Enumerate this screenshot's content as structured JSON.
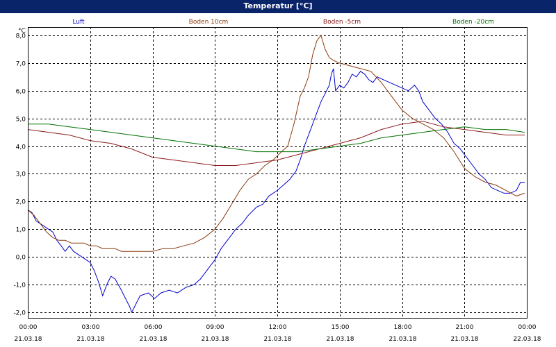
{
  "window": {
    "title": "Temperatur [°C]"
  },
  "chart_data": {
    "type": "line",
    "title": "Temperatur [°C]",
    "ylabel": "°C",
    "xlabel": "",
    "ylim": [
      -2.2,
      8.3
    ],
    "xlim": [
      0,
      24
    ],
    "grid": true,
    "legend": "top",
    "y_ticks": [
      "8,0",
      "7,0",
      "6,0",
      "5,0",
      "4,0",
      "3,0",
      "2,0",
      "1,0",
      "0,0",
      "-1,0",
      "-2,0"
    ],
    "x_ticks": [
      {
        "time": "00:00",
        "date": "21.03.18"
      },
      {
        "time": "03:00",
        "date": "21.03.18"
      },
      {
        "time": "06:00",
        "date": "21.03.18"
      },
      {
        "time": "09:00",
        "date": "21.03.18"
      },
      {
        "time": "12:00",
        "date": "21.03.18"
      },
      {
        "time": "15:00",
        "date": "21.03.18"
      },
      {
        "time": "18:00",
        "date": "21.03.18"
      },
      {
        "time": "21:00",
        "date": "21.03.18"
      },
      {
        "time": "00:00",
        "date": "22.03.18"
      }
    ],
    "series": [
      {
        "name": "Luft",
        "color": "#0000cc",
        "points": [
          [
            0,
            1.7
          ],
          [
            0.2,
            1.6
          ],
          [
            0.4,
            1.3
          ],
          [
            0.6,
            1.2
          ],
          [
            0.8,
            1.1
          ],
          [
            1,
            1.0
          ],
          [
            1.2,
            0.9
          ],
          [
            1.4,
            0.6
          ],
          [
            1.6,
            0.4
          ],
          [
            1.8,
            0.2
          ],
          [
            2,
            0.4
          ],
          [
            2.2,
            0.2
          ],
          [
            2.4,
            0.1
          ],
          [
            2.6,
            0.0
          ],
          [
            2.8,
            -0.1
          ],
          [
            3,
            -0.2
          ],
          [
            3.2,
            -0.5
          ],
          [
            3.4,
            -0.9
          ],
          [
            3.6,
            -1.4
          ],
          [
            3.8,
            -1.0
          ],
          [
            4,
            -0.7
          ],
          [
            4.2,
            -0.8
          ],
          [
            4.5,
            -1.2
          ],
          [
            4.7,
            -1.5
          ],
          [
            4.9,
            -1.8
          ],
          [
            5,
            -2.0
          ],
          [
            5.2,
            -1.7
          ],
          [
            5.4,
            -1.4
          ],
          [
            5.8,
            -1.3
          ],
          [
            6.1,
            -1.5
          ],
          [
            6.4,
            -1.3
          ],
          [
            6.8,
            -1.2
          ],
          [
            7.2,
            -1.3
          ],
          [
            7.6,
            -1.1
          ],
          [
            8,
            -1.0
          ],
          [
            8.3,
            -0.8
          ],
          [
            8.6,
            -0.5
          ],
          [
            9,
            -0.1
          ],
          [
            9.3,
            0.3
          ],
          [
            9.6,
            0.6
          ],
          [
            10,
            1.0
          ],
          [
            10.3,
            1.2
          ],
          [
            10.6,
            1.5
          ],
          [
            11,
            1.8
          ],
          [
            11.3,
            1.9
          ],
          [
            11.6,
            2.2
          ],
          [
            12,
            2.4
          ],
          [
            12.3,
            2.6
          ],
          [
            12.6,
            2.8
          ],
          [
            12.9,
            3.1
          ],
          [
            13.1,
            3.5
          ],
          [
            13.3,
            4.0
          ],
          [
            13.5,
            4.4
          ],
          [
            13.7,
            4.8
          ],
          [
            13.9,
            5.2
          ],
          [
            14.1,
            5.6
          ],
          [
            14.3,
            5.9
          ],
          [
            14.5,
            6.2
          ],
          [
            14.6,
            6.6
          ],
          [
            14.7,
            6.8
          ],
          [
            14.8,
            6.0
          ],
          [
            15,
            6.2
          ],
          [
            15.2,
            6.1
          ],
          [
            15.4,
            6.3
          ],
          [
            15.6,
            6.6
          ],
          [
            15.8,
            6.5
          ],
          [
            16,
            6.7
          ],
          [
            16.2,
            6.6
          ],
          [
            16.4,
            6.4
          ],
          [
            16.6,
            6.3
          ],
          [
            16.8,
            6.5
          ],
          [
            17.1,
            6.4
          ],
          [
            17.4,
            6.3
          ],
          [
            17.7,
            6.2
          ],
          [
            18,
            6.1
          ],
          [
            18.3,
            6.0
          ],
          [
            18.6,
            6.2
          ],
          [
            18.8,
            6.0
          ],
          [
            19,
            5.6
          ],
          [
            19.3,
            5.3
          ],
          [
            19.6,
            5.0
          ],
          [
            19.9,
            4.8
          ],
          [
            20.2,
            4.5
          ],
          [
            20.5,
            4.1
          ],
          [
            20.8,
            3.9
          ],
          [
            21.1,
            3.6
          ],
          [
            21.4,
            3.3
          ],
          [
            21.7,
            3.0
          ],
          [
            22,
            2.8
          ],
          [
            22.3,
            2.5
          ],
          [
            22.6,
            2.4
          ],
          [
            22.9,
            2.3
          ],
          [
            23.2,
            2.3
          ],
          [
            23.5,
            2.4
          ],
          [
            23.7,
            2.7
          ],
          [
            23.9,
            2.7
          ]
        ]
      },
      {
        "name": "Boden 10cm",
        "color": "#8b3a0f",
        "points": [
          [
            0,
            1.7
          ],
          [
            0.3,
            1.5
          ],
          [
            0.6,
            1.2
          ],
          [
            0.9,
            0.9
          ],
          [
            1.2,
            0.7
          ],
          [
            1.5,
            0.6
          ],
          [
            1.8,
            0.6
          ],
          [
            2.1,
            0.5
          ],
          [
            2.4,
            0.5
          ],
          [
            2.7,
            0.5
          ],
          [
            3,
            0.4
          ],
          [
            3.3,
            0.4
          ],
          [
            3.6,
            0.3
          ],
          [
            3.9,
            0.3
          ],
          [
            4.2,
            0.3
          ],
          [
            4.5,
            0.2
          ],
          [
            5,
            0.2
          ],
          [
            5.5,
            0.2
          ],
          [
            6,
            0.2
          ],
          [
            6.5,
            0.3
          ],
          [
            7,
            0.3
          ],
          [
            7.5,
            0.4
          ],
          [
            8,
            0.5
          ],
          [
            8.5,
            0.7
          ],
          [
            9,
            1.0
          ],
          [
            9.4,
            1.4
          ],
          [
            9.8,
            1.9
          ],
          [
            10.2,
            2.4
          ],
          [
            10.6,
            2.8
          ],
          [
            11,
            3.0
          ],
          [
            11.4,
            3.3
          ],
          [
            11.8,
            3.5
          ],
          [
            12.2,
            3.8
          ],
          [
            12.5,
            4.0
          ],
          [
            12.8,
            4.8
          ],
          [
            13.1,
            5.8
          ],
          [
            13.3,
            6.1
          ],
          [
            13.5,
            6.5
          ],
          [
            13.7,
            7.3
          ],
          [
            13.9,
            7.8
          ],
          [
            14.1,
            8.0
          ],
          [
            14.3,
            7.5
          ],
          [
            14.5,
            7.2
          ],
          [
            14.7,
            7.1
          ],
          [
            15,
            7.0
          ],
          [
            15.5,
            6.9
          ],
          [
            16,
            6.8
          ],
          [
            16.5,
            6.7
          ],
          [
            17,
            6.3
          ],
          [
            17.5,
            5.8
          ],
          [
            18,
            5.3
          ],
          [
            18.5,
            5.0
          ],
          [
            19,
            4.8
          ],
          [
            19.5,
            4.6
          ],
          [
            20,
            4.3
          ],
          [
            20.5,
            3.8
          ],
          [
            21,
            3.2
          ],
          [
            21.5,
            2.9
          ],
          [
            22,
            2.7
          ],
          [
            22.5,
            2.6
          ],
          [
            23,
            2.4
          ],
          [
            23.5,
            2.2
          ],
          [
            23.9,
            2.3
          ]
        ]
      },
      {
        "name": "Boden -5cm",
        "color": "#8b1a1a",
        "points": [
          [
            0,
            4.6
          ],
          [
            1,
            4.5
          ],
          [
            2,
            4.4
          ],
          [
            3,
            4.2
          ],
          [
            4,
            4.1
          ],
          [
            5,
            3.9
          ],
          [
            6,
            3.6
          ],
          [
            7,
            3.5
          ],
          [
            8,
            3.4
          ],
          [
            9,
            3.3
          ],
          [
            10,
            3.3
          ],
          [
            11,
            3.4
          ],
          [
            12,
            3.5
          ],
          [
            13,
            3.7
          ],
          [
            14,
            3.9
          ],
          [
            15,
            4.1
          ],
          [
            16,
            4.3
          ],
          [
            17,
            4.6
          ],
          [
            18,
            4.8
          ],
          [
            19,
            4.9
          ],
          [
            20,
            4.7
          ],
          [
            21,
            4.6
          ],
          [
            22,
            4.5
          ],
          [
            23,
            4.4
          ],
          [
            23.9,
            4.4
          ]
        ]
      },
      {
        "name": "Boden -20cm",
        "color": "#007000",
        "points": [
          [
            0,
            4.8
          ],
          [
            1,
            4.8
          ],
          [
            2,
            4.7
          ],
          [
            3,
            4.6
          ],
          [
            4,
            4.5
          ],
          [
            5,
            4.4
          ],
          [
            6,
            4.3
          ],
          [
            7,
            4.2
          ],
          [
            8,
            4.1
          ],
          [
            9,
            4.0
          ],
          [
            10,
            3.9
          ],
          [
            11,
            3.8
          ],
          [
            12,
            3.8
          ],
          [
            13,
            3.8
          ],
          [
            14,
            3.9
          ],
          [
            15,
            4.0
          ],
          [
            16,
            4.1
          ],
          [
            17,
            4.3
          ],
          [
            18,
            4.4
          ],
          [
            19,
            4.5
          ],
          [
            20,
            4.6
          ],
          [
            21,
            4.7
          ],
          [
            22,
            4.6
          ],
          [
            23,
            4.6
          ],
          [
            23.9,
            4.5
          ]
        ]
      }
    ]
  }
}
